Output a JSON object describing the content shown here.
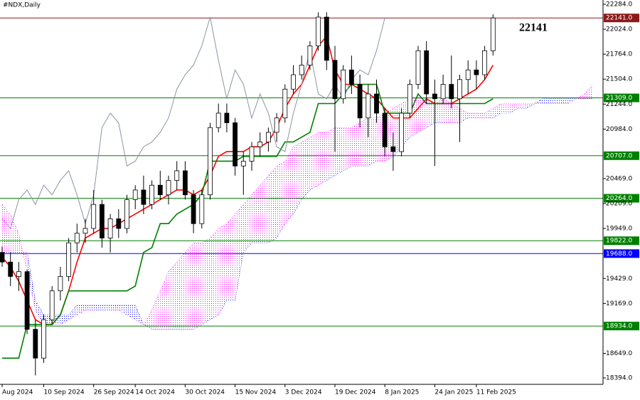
{
  "chart_data": {
    "type": "candlestick",
    "title": "#NDX,Daily",
    "annotation": "22141",
    "categories": [
      "Aug 2024",
      null,
      null,
      null,
      null,
      "10 Sep 2024",
      null,
      null,
      null,
      null,
      null,
      "26 Sep 2024",
      null,
      null,
      null,
      null,
      "14 Oct 2024",
      null,
      null,
      null,
      null,
      null,
      "30 Oct 2024",
      null,
      null,
      null,
      null,
      null,
      "15 Nov 2024",
      null,
      null,
      null,
      null,
      null,
      "3 Dec 2024",
      null,
      null,
      null,
      null,
      null,
      "19 Dec 2024",
      null,
      null,
      null,
      null,
      null,
      "8 Jan 2025",
      null,
      null,
      null,
      null,
      null,
      "24 Jan 2025",
      null,
      null,
      null,
      null,
      "11 Feb 2025",
      null,
      null,
      null,
      null,
      null,
      null,
      null,
      null,
      null,
      null,
      null,
      null,
      null,
      null
    ],
    "ohlc": [
      [
        19700,
        19760,
        19550,
        19600
      ],
      [
        19600,
        19700,
        19350,
        19450
      ],
      [
        19450,
        19600,
        19300,
        19500
      ],
      [
        19500,
        19520,
        18850,
        18900
      ],
      [
        18900,
        19000,
        18420,
        18600
      ],
      [
        18600,
        19050,
        18550,
        19000
      ],
      [
        19000,
        19350,
        18950,
        19300
      ],
      [
        19300,
        19550,
        19200,
        19450
      ],
      [
        19450,
        19850,
        19400,
        19800
      ],
      [
        19800,
        20000,
        19700,
        19900
      ],
      [
        19900,
        20050,
        19800,
        19950
      ],
      [
        19950,
        20350,
        19900,
        20200
      ],
      [
        20200,
        20250,
        19750,
        19850
      ],
      [
        19850,
        20100,
        19700,
        20050
      ],
      [
        20050,
        20150,
        19850,
        19950
      ],
      [
        19950,
        20300,
        19900,
        20250
      ],
      [
        20250,
        20400,
        20150,
        20350
      ],
      [
        20350,
        20500,
        20100,
        20200
      ],
      [
        20200,
        20450,
        20150,
        20400
      ],
      [
        20400,
        20550,
        20250,
        20300
      ],
      [
        20300,
        20500,
        20200,
        20450
      ],
      [
        20450,
        20650,
        20350,
        20550
      ],
      [
        20550,
        20650,
        20250,
        20300
      ],
      [
        20300,
        20350,
        19900,
        20000
      ],
      [
        20000,
        20350,
        19950,
        20300
      ],
      [
        20300,
        21050,
        20250,
        21000
      ],
      [
        21000,
        21250,
        20950,
        21150
      ],
      [
        21150,
        21250,
        20950,
        21050
      ],
      [
        21050,
        21100,
        20500,
        20600
      ],
      [
        20600,
        20750,
        20300,
        20650
      ],
      [
        20650,
        20850,
        20550,
        20800
      ],
      [
        20800,
        20950,
        20700,
        20850
      ],
      [
        20850,
        21000,
        20750,
        20950
      ],
      [
        20950,
        21150,
        20850,
        21100
      ],
      [
        21100,
        21450,
        21050,
        21400
      ],
      [
        21400,
        21650,
        21350,
        21550
      ],
      [
        21550,
        21750,
        21500,
        21650
      ],
      [
        21650,
        21900,
        21600,
        21850
      ],
      [
        21850,
        22200,
        21800,
        22150
      ],
      [
        22150,
        22200,
        21600,
        21700
      ],
      [
        21700,
        21850,
        20750,
        21300
      ],
      [
        21300,
        21650,
        21250,
        21600
      ],
      [
        21600,
        21750,
        21350,
        21450
      ],
      [
        21450,
        21550,
        21000,
        21100
      ],
      [
        21100,
        21450,
        20900,
        21350
      ],
      [
        21350,
        21500,
        21050,
        21150
      ],
      [
        21150,
        21200,
        20700,
        20800
      ],
      [
        20800,
        20950,
        20550,
        20750
      ],
      [
        20750,
        21200,
        20700,
        21150
      ],
      [
        21150,
        21500,
        21100,
        21450
      ],
      [
        21450,
        21850,
        21400,
        21800
      ],
      [
        21800,
        21900,
        21250,
        21350
      ],
      [
        21350,
        21500,
        20600,
        21300
      ],
      [
        21300,
        21550,
        21250,
        21450
      ],
      [
        21450,
        21750,
        21200,
        21300
      ],
      [
        21300,
        21550,
        20850,
        21500
      ],
      [
        21500,
        21700,
        21350,
        21600
      ],
      [
        21600,
        21700,
        21400,
        21550
      ],
      [
        21550,
        21850,
        21500,
        21800
      ],
      [
        21800,
        22180,
        21750,
        22141
      ]
    ],
    "lines": [
      {
        "color": "#ff0000",
        "values": [
          19650,
          19550,
          19400,
          19200,
          19000,
          18950,
          18950,
          19050,
          19300,
          19600,
          19850,
          19900,
          19950,
          19950,
          20000,
          20050,
          20100,
          20150,
          20200,
          20250,
          20300,
          20350,
          20350,
          20300,
          20350,
          20500,
          20700,
          20750,
          20750,
          20750,
          20800,
          20800,
          20850,
          21000,
          21200,
          21350,
          21450,
          21650,
          21850,
          21950,
          21600,
          21450,
          21450,
          21400,
          21350,
          21300,
          21200,
          21100,
          21100,
          21100,
          21200,
          21300,
          21250,
          21250,
          21250,
          21300,
          21350,
          21400,
          21500,
          21650,
          null,
          null,
          null,
          null,
          null,
          null,
          null,
          null,
          null,
          null,
          null,
          null
        ]
      },
      {
        "color": "#008000",
        "values": [
          18600,
          18600,
          18600,
          18950,
          18950,
          18950,
          18950,
          19050,
          19300,
          19300,
          19300,
          19300,
          19300,
          19300,
          19300,
          19300,
          19350,
          19700,
          19750,
          20000,
          20000,
          20100,
          20150,
          20200,
          20300,
          20650,
          20650,
          20650,
          20650,
          20700,
          20700,
          20700,
          20700,
          20700,
          20850,
          20850,
          20900,
          20950,
          21250,
          21250,
          21250,
          21350,
          21450,
          21450,
          21450,
          21450,
          21150,
          21150,
          21150,
          21150,
          21350,
          21250,
          21250,
          21250,
          21250,
          21250,
          21250,
          21250,
          21250,
          21300,
          null,
          null,
          null,
          null,
          null,
          null,
          null,
          null,
          null,
          null,
          null,
          null
        ]
      },
      {
        "color": "#8a95a5",
        "values": [
          20050,
          19950,
          20250,
          20350,
          20200,
          20400,
          20300,
          20450,
          20550,
          20300,
          20000,
          20300,
          21000,
          21150,
          21050,
          20600,
          20650,
          20800,
          20850,
          20950,
          21100,
          21400,
          21550,
          21650,
          21850,
          22150,
          21700,
          21300,
          21600,
          21450,
          21100,
          21350,
          21150,
          20800,
          20750,
          21150,
          21450,
          21800,
          21350,
          21300,
          21450,
          21300,
          21500,
          21600,
          21550,
          21800,
          22141,
          null,
          null,
          null,
          null,
          null,
          null,
          null,
          null,
          null,
          null,
          null,
          null,
          null,
          null,
          null,
          null,
          null,
          null,
          null,
          null,
          null,
          null,
          null,
          null,
          null
        ]
      }
    ],
    "cloud": {
      "up_color": "#ff00ff",
      "down_color": "#0000ff",
      "a": [
        20200,
        20100,
        19900,
        19500,
        19100,
        18950,
        18950,
        18950,
        19000,
        19050,
        19100,
        19100,
        19100,
        19100,
        19100,
        19050,
        19000,
        18950,
        19100,
        19300,
        19500,
        19600,
        19700,
        19800,
        19800,
        19850,
        19950,
        20000,
        20100,
        20200,
        20300,
        20400,
        20500,
        20600,
        20650,
        20800,
        20850,
        20900,
        20950,
        20950,
        21000,
        21000,
        21000,
        21050,
        21100,
        21100,
        21150,
        21200,
        21250,
        21300,
        21300,
        21300,
        21250,
        21300,
        21250,
        21200,
        21150,
        21150,
        21150,
        21200,
        21250,
        21250,
        21250,
        21250,
        21250,
        21250,
        21250,
        21250,
        21250,
        21300,
        21350,
        21450
      ],
      "b": [
        19700,
        19700,
        19700,
        19700,
        19200,
        19050,
        19050,
        19050,
        19050,
        19150,
        19150,
        19150,
        19150,
        19150,
        19150,
        19150,
        19150,
        18950,
        18900,
        18900,
        18900,
        18900,
        18900,
        18900,
        18950,
        19000,
        19050,
        19200,
        19200,
        19700,
        19800,
        19800,
        19800,
        19850,
        20000,
        20100,
        20250,
        20350,
        20400,
        20450,
        20500,
        20550,
        20600,
        20600,
        20600,
        20650,
        20650,
        20700,
        20800,
        20900,
        20950,
        21000,
        21050,
        21050,
        21050,
        21050,
        21100,
        21100,
        21100,
        21100,
        21150,
        21150,
        21200,
        21200,
        21250,
        21300,
        21300,
        21300,
        21300,
        21300,
        21300,
        21300
      ]
    },
    "levels": [
      {
        "value": 22141,
        "label": "22141.0",
        "color": "#8b1a1a"
      },
      {
        "value": 21309,
        "label": "21309.0",
        "color": "#008000"
      },
      {
        "value": 20707,
        "label": "20707.0",
        "color": "#008000"
      },
      {
        "value": 20264,
        "label": "20264.0",
        "color": "#008000"
      },
      {
        "value": 19822,
        "label": "19822.0",
        "color": "#008000"
      },
      {
        "value": 19688,
        "label": "19688.0",
        "color": "#0000ff"
      },
      {
        "value": 18934,
        "label": "18934.0",
        "color": "#008000"
      }
    ],
    "ylim": [
      18327,
      22328
    ],
    "yticks": [
      {
        "value": 22284,
        "label": "22284.0"
      },
      {
        "value": 22024,
        "label": "22024.0"
      },
      {
        "value": 21764,
        "label": "21764.0"
      },
      {
        "value": 21504,
        "label": "21504.0"
      },
      {
        "value": 21244,
        "label": "21244.0"
      },
      {
        "value": 20984,
        "label": "20984.0"
      },
      {
        "value": 20469,
        "label": "20469.0"
      },
      {
        "value": 20209,
        "label": "20209.0"
      },
      {
        "value": 19949,
        "label": "19949.0"
      },
      {
        "value": 19429,
        "label": "19429.0"
      },
      {
        "value": 19169,
        "label": "19169.0"
      },
      {
        "value": 18649,
        "label": "18649.0"
      },
      {
        "value": 18394,
        "label": "18394.0"
      }
    ]
  }
}
